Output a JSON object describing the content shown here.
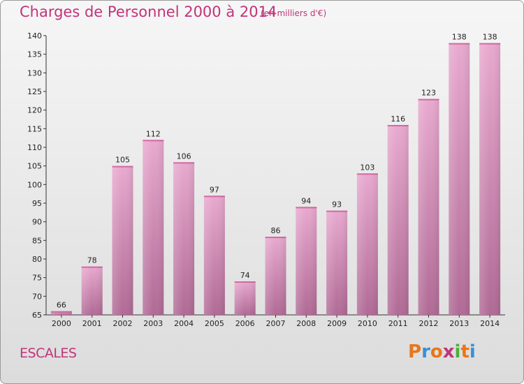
{
  "title": "Charges de Personnel 2000 à 2014",
  "subtitle": "(en milliers d'€)",
  "commune": "ESCALES",
  "logo": [
    "P",
    "r",
    "o",
    "x",
    "i",
    "t",
    "i"
  ],
  "colors": {
    "title": "#c0347a",
    "bar_top": "#e8a9cf",
    "bar_bottom": "#b06a95",
    "logo": [
      "#e8761a",
      "#3a8fd6",
      "#e8761a",
      "#c0347a",
      "#4caf3c",
      "#e8761a",
      "#3a8fd6"
    ]
  },
  "chart_data": {
    "type": "bar",
    "categories": [
      "2000",
      "2001",
      "2002",
      "2003",
      "2004",
      "2005",
      "2006",
      "2007",
      "2008",
      "2009",
      "2010",
      "2011",
      "2012",
      "2013",
      "2014"
    ],
    "values": [
      66,
      78,
      105,
      112,
      106,
      97,
      74,
      86,
      94,
      93,
      103,
      116,
      123,
      138,
      138
    ],
    "ylim": [
      65,
      140
    ],
    "yticks": [
      65,
      70,
      75,
      80,
      85,
      90,
      95,
      100,
      105,
      110,
      115,
      120,
      125,
      130,
      135,
      140
    ],
    "grid": false,
    "legend": "none"
  }
}
